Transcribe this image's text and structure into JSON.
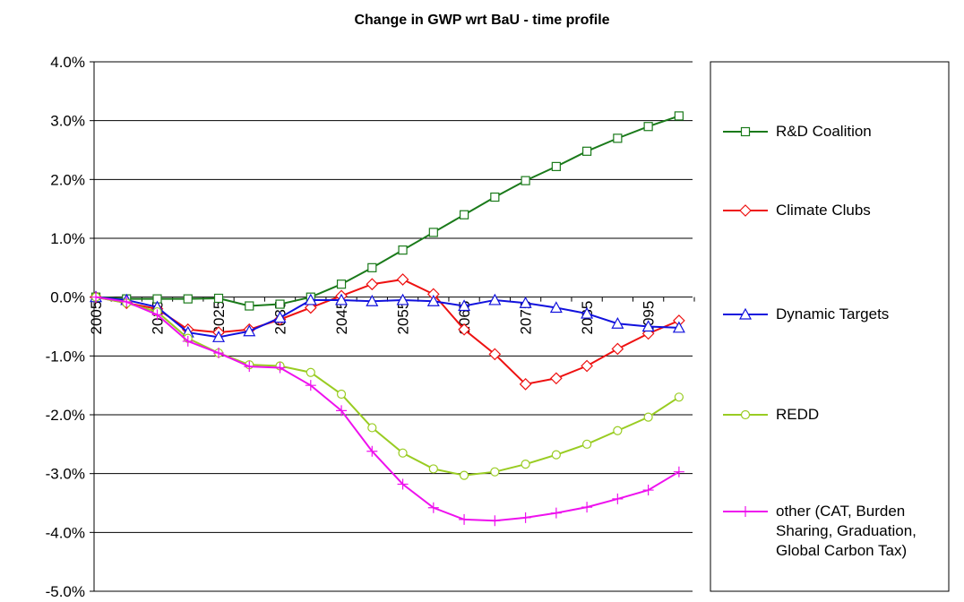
{
  "chart_data": {
    "type": "line",
    "title": "Change in GWP wrt BaU - time profile",
    "categories": [
      "2005",
      null,
      "2015",
      null,
      "2025",
      null,
      "2035",
      null,
      "2045",
      null,
      "2055",
      null,
      "2065",
      null,
      "2075",
      null,
      "2085",
      null,
      "2095",
      null
    ],
    "ylim": [
      -5,
      4
    ],
    "yticks": [
      {
        "value": -5,
        "label": "-5.0%"
      },
      {
        "value": -4,
        "label": "-4.0%"
      },
      {
        "value": -3,
        "label": "-3.0%"
      },
      {
        "value": -2,
        "label": "-2.0%"
      },
      {
        "value": -1,
        "label": "-1.0%"
      },
      {
        "value": 0,
        "label": "0.0%"
      },
      {
        "value": 1,
        "label": "1.0%"
      },
      {
        "value": 2,
        "label": "2.0%"
      },
      {
        "value": 3,
        "label": "3.0%"
      },
      {
        "value": 4,
        "label": "4.0%"
      }
    ],
    "grid": true,
    "legend": "right",
    "series": [
      {
        "name": "R&D Coalition",
        "color": "#1a7a1a",
        "marker": "square",
        "values": [
          0,
          -0.03,
          -0.03,
          -0.03,
          -0.02,
          -0.15,
          -0.12,
          0.0,
          0.22,
          0.5,
          0.8,
          1.1,
          1.4,
          1.7,
          1.98,
          2.22,
          2.48,
          2.7,
          2.9,
          3.08
        ]
      },
      {
        "name": "Climate Clubs",
        "color": "#ee1111",
        "marker": "diamond",
        "values": [
          0,
          -0.1,
          -0.2,
          -0.55,
          -0.6,
          -0.55,
          -0.38,
          -0.18,
          0.02,
          0.22,
          0.3,
          0.05,
          -0.55,
          -0.97,
          -1.48,
          -1.38,
          -1.17,
          -0.88,
          -0.62,
          -0.4
        ]
      },
      {
        "name": "Dynamic Targets",
        "color": "#1111dd",
        "marker": "triangle",
        "values": [
          0,
          -0.05,
          -0.17,
          -0.6,
          -0.68,
          -0.58,
          -0.35,
          -0.05,
          -0.05,
          -0.07,
          -0.05,
          -0.07,
          -0.15,
          -0.05,
          -0.1,
          -0.18,
          -0.28,
          -0.45,
          -0.5,
          -0.52
        ]
      },
      {
        "name": "REDD",
        "color": "#99cc22",
        "marker": "circle",
        "values": [
          0,
          -0.1,
          -0.25,
          -0.7,
          -0.95,
          -1.15,
          -1.17,
          -1.28,
          -1.65,
          -2.22,
          -2.65,
          -2.92,
          -3.03,
          -2.97,
          -2.84,
          -2.68,
          -2.5,
          -2.27,
          -2.04,
          -1.7
        ]
      },
      {
        "name": "other (CAT, Burden Sharing, Graduation, Global Carbon Tax)",
        "color": "#ee11ee",
        "marker": "plus",
        "values": [
          0,
          -0.08,
          -0.3,
          -0.75,
          -0.95,
          -1.18,
          -1.2,
          -1.5,
          -1.93,
          -2.62,
          -3.18,
          -3.58,
          -3.78,
          -3.8,
          -3.75,
          -3.67,
          -3.57,
          -3.43,
          -3.28,
          -2.97
        ]
      }
    ]
  }
}
